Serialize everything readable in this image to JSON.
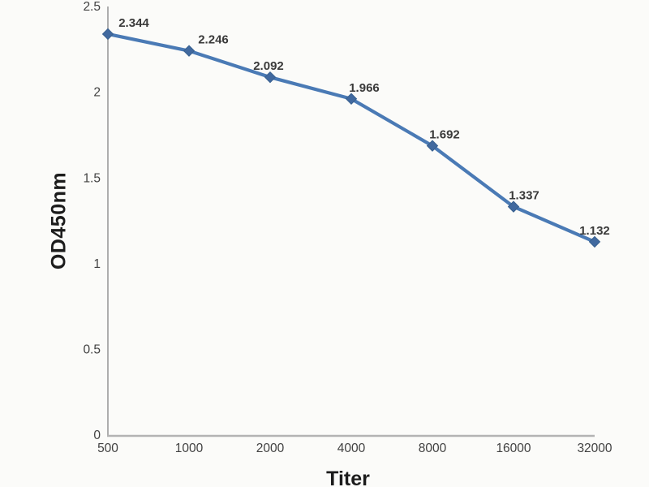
{
  "figure": {
    "background": "#fbfbf9",
    "line_color": "#4a7ab5",
    "marker_color": "#41699f",
    "marker_edge_color": "#38608f",
    "y_axis_color": "#9a9a9a",
    "x_axis_color": "#b3b3b3",
    "tick_label_color": "#414141",
    "data_label_color": "#3a3a3a",
    "title_color": "#1c1c1c"
  },
  "chart_data": {
    "type": "line",
    "title": "",
    "xlabel": "Titer",
    "ylabel": "OD450nm",
    "x": [
      500,
      1000,
      2000,
      4000,
      8000,
      16000,
      32000
    ],
    "xtick_labels": [
      "500",
      "1000",
      "2000",
      "4000",
      "8000",
      "16000",
      "32000"
    ],
    "x_spacing": "categorical (doubling titer, evenly spaced)",
    "values": [
      2.344,
      2.246,
      2.092,
      1.966,
      1.692,
      1.337,
      1.132
    ],
    "data_labels": [
      "2.344",
      "2.246",
      "2.092",
      "1.966",
      "1.692",
      "1.337",
      "1.132"
    ],
    "ylim": [
      0,
      2.5
    ],
    "yticks": [
      0,
      0.5,
      1,
      1.5,
      2,
      2.5
    ],
    "ytick_labels": [
      "0",
      "0.5",
      "1",
      "1.5",
      "2",
      "2.5"
    ],
    "grid": false,
    "legend": "none",
    "marker": "diamond"
  }
}
